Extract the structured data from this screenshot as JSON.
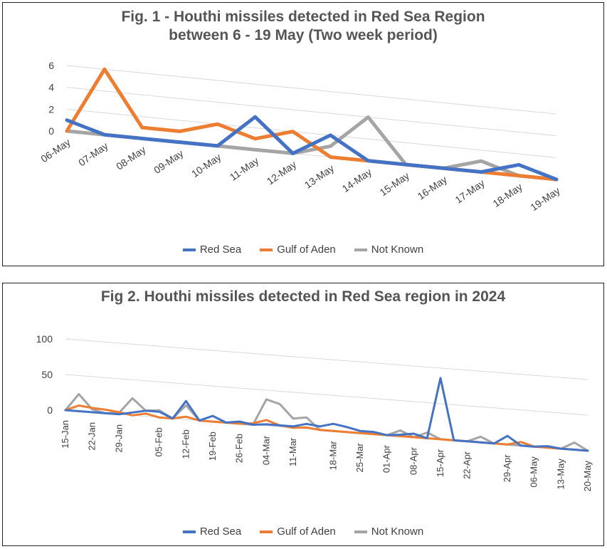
{
  "chart_data": [
    {
      "type": "line",
      "title_line1": "Fig. 1 - Houthi missiles detected in Red Sea Region",
      "title_line2": "between 6 - 19 May (Two week period)",
      "xlabel": "",
      "ylabel": "",
      "ylim": [
        0,
        6
      ],
      "yticks": [
        "0",
        "2",
        "4",
        "6"
      ],
      "categories": [
        "06-May",
        "07-May",
        "08-May",
        "09-May",
        "10-May",
        "11-May",
        "12-May",
        "13-May",
        "14-May",
        "15-May",
        "16-May",
        "17-May",
        "18-May",
        "19-May"
      ],
      "series": [
        {
          "name": "Red Sea",
          "color": "#4472c4",
          "values": [
            1,
            0,
            0,
            0,
            0,
            3,
            0,
            2,
            0,
            0,
            0,
            0,
            1,
            0
          ]
        },
        {
          "name": "Gulf of Aden",
          "color": "#ed7d31",
          "values": [
            0,
            6,
            1,
            1,
            2,
            1,
            2,
            0,
            0,
            0,
            0,
            0,
            0,
            0
          ]
        },
        {
          "name": "Not Known",
          "color": "#a5a5a5",
          "values": [
            0,
            0,
            0,
            0,
            0,
            0,
            0,
            1,
            4,
            0,
            0,
            1,
            0,
            0
          ]
        }
      ],
      "legend_position": "bottom",
      "grid": true
    },
    {
      "type": "line",
      "title": "Fig 2. Houthi missiles detected in Red Sea region in 2024",
      "xlabel": "",
      "ylabel": "",
      "ylim": [
        0,
        100
      ],
      "yticks": [
        "0",
        "50",
        "100"
      ],
      "tick_labels": [
        "15-Jan",
        "22-Jan",
        "29-Jan",
        "05-Feb",
        "12-Feb",
        "19-Feb",
        "26-Feb",
        "04-Mar",
        "11-Mar",
        "18-Mar",
        "25-Mar",
        "01-Apr",
        "08-Apr",
        "15-Apr",
        "22-Apr",
        "29-Apr",
        "06-May",
        "13-May",
        "20-May"
      ],
      "series": [
        {
          "name": "Red Sea",
          "color": "#4472c4",
          "values": [
            0,
            0,
            0,
            0,
            0,
            4,
            8,
            8,
            0,
            26,
            0,
            8,
            0,
            3,
            0,
            2,
            2,
            2,
            7,
            5,
            10,
            7,
            3,
            3,
            0,
            2,
            5,
            0,
            86,
            0,
            0,
            0,
            0,
            12,
            0,
            0,
            2,
            0,
            0,
            0
          ]
        },
        {
          "name": "Gulf of Aden",
          "color": "#ed7d31",
          "values": [
            0,
            8,
            6,
            5,
            3,
            0,
            4,
            0,
            0,
            4,
            0,
            0,
            0,
            0,
            2,
            8,
            2,
            0,
            2,
            0,
            0,
            0,
            0,
            0,
            0,
            0,
            0,
            0,
            0,
            0,
            0,
            0,
            0,
            0,
            5,
            0,
            0,
            0,
            0,
            0
          ]
        },
        {
          "name": "Not Known",
          "color": "#a5a5a5",
          "values": [
            0,
            24,
            4,
            0,
            2,
            24,
            8,
            10,
            0,
            20,
            0,
            0,
            0,
            0,
            0,
            37,
            32,
            13,
            16,
            0,
            0,
            0,
            0,
            0,
            0,
            8,
            0,
            8,
            0,
            0,
            0,
            8,
            0,
            0,
            0,
            0,
            0,
            0,
            10,
            0
          ]
        }
      ],
      "legend_position": "bottom",
      "grid": true
    }
  ]
}
